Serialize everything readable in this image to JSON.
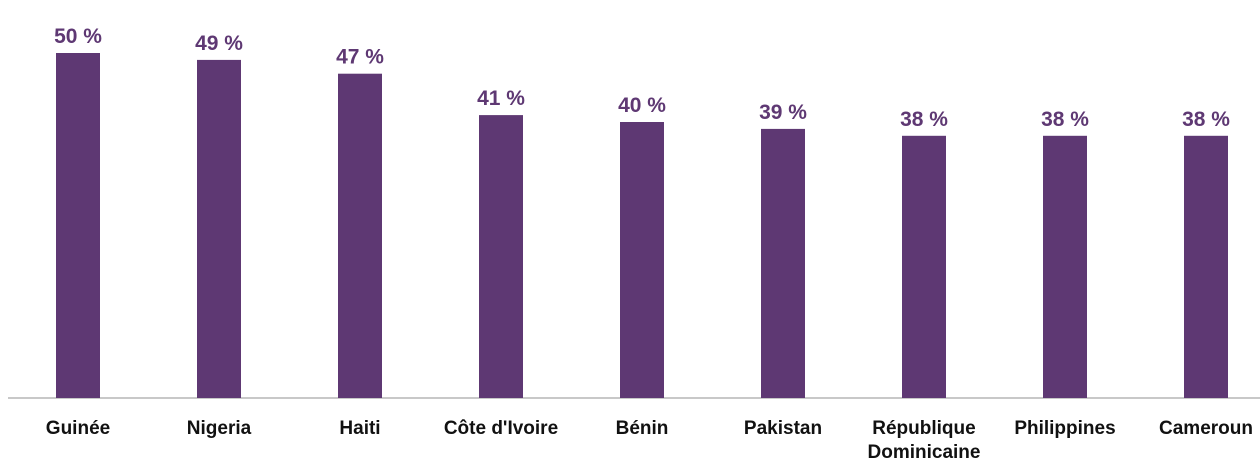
{
  "colors": {
    "bar": "#5e3873",
    "value_label": "#5e3873",
    "axis": "#c8c8c8",
    "category_label": "#111111"
  },
  "chart_data": {
    "type": "bar",
    "categories": [
      "Guinée",
      "Nigeria",
      "Haiti",
      "Côte d'Ivoire",
      "Bénin",
      "Pakistan",
      "République Dominicaine",
      "Philippines",
      "Cameroun"
    ],
    "category_lines": [
      [
        "Guinée"
      ],
      [
        "Nigeria"
      ],
      [
        "Haiti"
      ],
      [
        "Côte d'Ivoire"
      ],
      [
        "Bénin"
      ],
      [
        "Pakistan"
      ],
      [
        "République",
        "Dominicaine"
      ],
      [
        "Philippines"
      ],
      [
        "Cameroun"
      ]
    ],
    "values": [
      50,
      49,
      47,
      41,
      40,
      39,
      38,
      38,
      38
    ],
    "value_labels": [
      "50 %",
      "49 %",
      "47 %",
      "41 %",
      "40 %",
      "39 %",
      "38 %",
      "38 %",
      "38 %"
    ],
    "title": "",
    "xlabel": "",
    "ylabel": "",
    "ylim": [
      0,
      100
    ],
    "grid": false,
    "legend": "none"
  }
}
